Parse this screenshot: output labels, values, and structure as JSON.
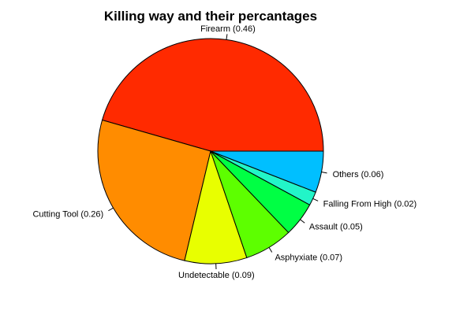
{
  "chart_data": {
    "type": "pie",
    "title": "Killing way and their percantages",
    "slices": [
      {
        "label": "Firearm (0.46)",
        "value": 0.46,
        "color": "#FF2A00"
      },
      {
        "label": "Cutting Tool (0.26)",
        "value": 0.26,
        "color": "#FF8C00"
      },
      {
        "label": "Undetectable (0.09)",
        "value": 0.09,
        "color": "#E8FF00"
      },
      {
        "label": "Asphyxiate (0.07)",
        "value": 0.07,
        "color": "#5DFF00"
      },
      {
        "label": "Assault (0.05)",
        "value": 0.05,
        "color": "#00FF44"
      },
      {
        "label": "Falling From High (0.02)",
        "value": 0.02,
        "color": "#22F5C8"
      },
      {
        "label": "Others (0.06)",
        "value": 0.06,
        "color": "#00BFFF"
      }
    ],
    "start_angle_deg": 0,
    "direction": "counterclockwise"
  }
}
